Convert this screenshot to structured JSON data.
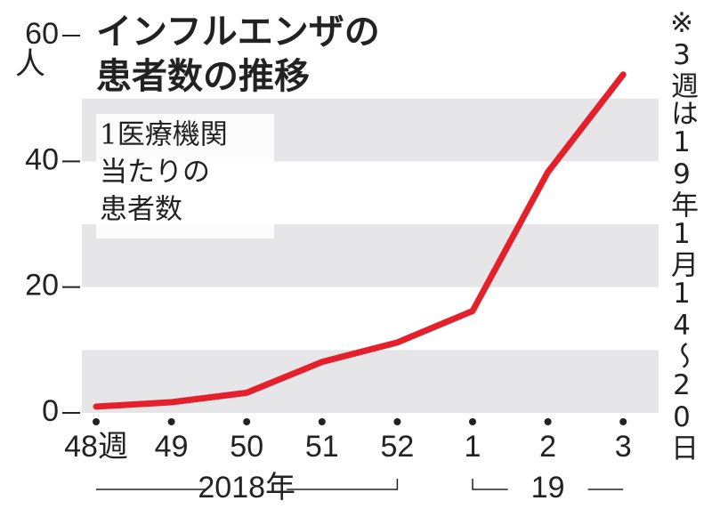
{
  "chart_data": {
    "type": "line",
    "title": [
      "インフルエンザの",
      "患者数の推移"
    ],
    "subtitle": [
      "1医療機関",
      "当たりの",
      "患者数"
    ],
    "y_unit": "人",
    "note": "※3週は19年1月14～20日",
    "categories": [
      "48週",
      "49",
      "50",
      "51",
      "52",
      "1",
      "2",
      "3"
    ],
    "year_groups": [
      {
        "label": "2018年",
        "from": 0,
        "to": 4
      },
      {
        "label": "19",
        "from": 5,
        "to": 7
      }
    ],
    "values": [
      1.0,
      1.7,
      3.2,
      8.1,
      11.2,
      16.2,
      38.3,
      53.8
    ],
    "color": "#e3202b",
    "ylim": [
      0,
      60
    ],
    "yticks": [
      0,
      20,
      40,
      60
    ],
    "bands": [
      [
        0,
        10
      ],
      [
        20,
        30
      ],
      [
        40,
        50
      ]
    ],
    "band_color": "#e6e6e8"
  }
}
